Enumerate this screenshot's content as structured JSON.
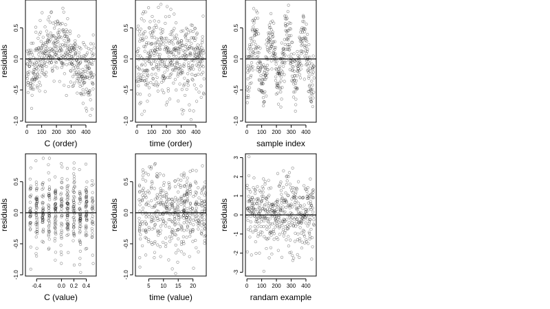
{
  "chart_data": [
    {
      "type": "scatter",
      "xlabel": "C (order)",
      "ylabel": "residuals",
      "xlim": [
        -10,
        470
      ],
      "ylim": [
        -1.02,
        0.95
      ],
      "xticks": [
        0,
        100,
        200,
        300,
        400
      ],
      "xtick_labels": [
        "0",
        "100",
        "200",
        "300",
        "400"
      ],
      "yticks": [
        -1.0,
        -0.5,
        0.0,
        0.5
      ],
      "ytick_labels": [
        "-1.0",
        "-0.5",
        "0.0",
        "0.5"
      ],
      "hline": 0,
      "x_kind": "index",
      "n": 456,
      "seed": 11,
      "sd": 0.32,
      "y_range": [
        -0.98,
        0.88
      ],
      "pattern": "wave"
    },
    {
      "type": "scatter",
      "xlabel": "time (order)",
      "ylabel": "residuals",
      "xlim": [
        -10,
        470
      ],
      "ylim": [
        -1.02,
        0.95
      ],
      "xticks": [
        0,
        100,
        200,
        300,
        400
      ],
      "xtick_labels": [
        "0",
        "100",
        "200",
        "300",
        "400"
      ],
      "yticks": [
        -1.0,
        -0.5,
        0.0,
        0.5
      ],
      "ytick_labels": [
        "-1.0",
        "-0.5",
        "0.0",
        "0.5"
      ],
      "hline": 0,
      "x_kind": "index",
      "n": 456,
      "seed": 23,
      "sd": 0.33,
      "y_range": [
        -0.98,
        0.88
      ],
      "pattern": "noise"
    },
    {
      "type": "scatter",
      "xlabel": "sample index",
      "ylabel": "residuals",
      "xlim": [
        -10,
        470
      ],
      "ylim": [
        -1.02,
        0.95
      ],
      "xticks": [
        0,
        100,
        200,
        300,
        400
      ],
      "xtick_labels": [
        "0",
        "100",
        "200",
        "300",
        "400"
      ],
      "yticks": [
        -1.0,
        -0.5,
        0.0,
        0.5
      ],
      "ytick_labels": [
        "-1.0",
        "-0.5",
        "0.0",
        "0.5"
      ],
      "hline": 0,
      "x_kind": "index",
      "n": 456,
      "seed": 37,
      "sd": 0.22,
      "y_range": [
        -0.98,
        0.88
      ],
      "pattern": "cycles"
    },
    {
      "type": "scatter",
      "xlabel": "C (value)",
      "ylabel": "residuals",
      "xlim": [
        -0.58,
        0.56
      ],
      "ylim": [
        -1.02,
        0.95
      ],
      "xticks": [
        -0.4,
        0.0,
        0.2,
        0.4
      ],
      "xtick_labels": [
        "-0.4",
        "0.0",
        "0.2",
        "0.4"
      ],
      "yticks": [
        -1.0,
        -0.5,
        0.0,
        0.5
      ],
      "ytick_labels": [
        "-1.0",
        "-0.5",
        "0.0",
        "0.5"
      ],
      "hline": 0,
      "x_kind": "columns",
      "x_values": [
        -0.5,
        -0.4,
        -0.3,
        -0.2,
        -0.1,
        0.0,
        0.1,
        0.2,
        0.3,
        0.4,
        0.5
      ],
      "n": 456,
      "seed": 53,
      "sd": 0.32,
      "y_range": [
        -0.98,
        0.88
      ],
      "pattern": "noise"
    },
    {
      "type": "scatter",
      "xlabel": "time (value)",
      "ylabel": "residuals",
      "xlim": [
        0.5,
        24.5
      ],
      "ylim": [
        -1.02,
        0.95
      ],
      "xticks": [
        5,
        10,
        15,
        20
      ],
      "xtick_labels": [
        "5",
        "10",
        "15",
        "20"
      ],
      "yticks": [
        -1.0,
        -0.5,
        0.0,
        0.5
      ],
      "ytick_labels": [
        "-1.0",
        "-0.5",
        "0.0",
        "0.5"
      ],
      "hline": 0,
      "x_kind": "columns",
      "x_values": [
        2,
        3,
        4,
        5,
        6,
        7,
        8,
        9,
        10,
        11,
        12,
        13,
        14,
        15,
        16,
        17,
        18,
        19,
        20,
        21,
        22,
        23,
        24
      ],
      "n": 456,
      "seed": 71,
      "sd": 0.33,
      "y_range": [
        -0.98,
        0.88
      ],
      "pattern": "noise"
    },
    {
      "type": "scatter",
      "xlabel": "randam example",
      "ylabel": "residuals",
      "xlim": [
        -10,
        470
      ],
      "ylim": [
        -3.2,
        3.2
      ],
      "xticks": [
        0,
        100,
        200,
        300,
        400
      ],
      "xtick_labels": [
        "0",
        "100",
        "200",
        "300",
        "400"
      ],
      "yticks": [
        -3,
        -2,
        -1,
        0,
        1,
        2,
        3
      ],
      "ytick_labels": [
        "-3",
        "-2",
        "-1",
        "0",
        "1",
        "2",
        "3"
      ],
      "hline": 0,
      "x_kind": "index",
      "n": 456,
      "seed": 97,
      "sd": 1.0,
      "y_range": [
        -3.0,
        3.05
      ],
      "pattern": "noise"
    }
  ]
}
